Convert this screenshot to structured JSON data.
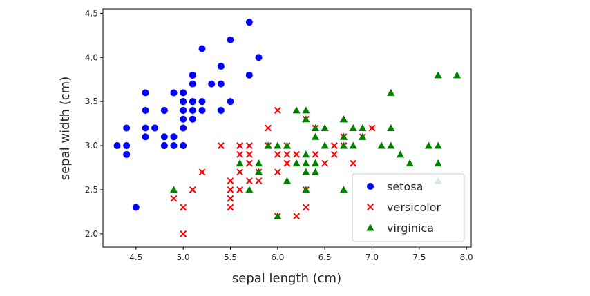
{
  "chart_data": {
    "type": "scatter",
    "xlabel": "sepal length (cm)",
    "ylabel": "sepal width (cm)",
    "xlim": [
      4.15,
      8.05
    ],
    "ylim": [
      1.85,
      4.55
    ],
    "xticks": [
      "4.5",
      "5.0",
      "5.5",
      "6.0",
      "6.5",
      "7.0",
      "7.5",
      "8.0"
    ],
    "yticks": [
      "2.0",
      "2.5",
      "3.0",
      "3.5",
      "4.0",
      "4.5"
    ],
    "grid": false,
    "legend": "lower-right",
    "series": [
      {
        "name": "setosa",
        "marker": "circle",
        "color": "#0000ff",
        "points": [
          [
            5.1,
            3.5
          ],
          [
            4.9,
            3.0
          ],
          [
            4.7,
            3.2
          ],
          [
            4.6,
            3.1
          ],
          [
            5.0,
            3.6
          ],
          [
            5.4,
            3.9
          ],
          [
            4.6,
            3.4
          ],
          [
            5.0,
            3.4
          ],
          [
            4.4,
            2.9
          ],
          [
            4.9,
            3.1
          ],
          [
            5.4,
            3.7
          ],
          [
            4.8,
            3.4
          ],
          [
            4.8,
            3.0
          ],
          [
            4.3,
            3.0
          ],
          [
            5.8,
            4.0
          ],
          [
            5.7,
            4.4
          ],
          [
            5.4,
            3.9
          ],
          [
            5.1,
            3.5
          ],
          [
            5.7,
            3.8
          ],
          [
            5.1,
            3.8
          ],
          [
            5.4,
            3.4
          ],
          [
            5.1,
            3.7
          ],
          [
            4.6,
            3.6
          ],
          [
            5.1,
            3.3
          ],
          [
            4.8,
            3.4
          ],
          [
            5.0,
            3.0
          ],
          [
            5.0,
            3.4
          ],
          [
            5.2,
            3.5
          ],
          [
            5.2,
            3.4
          ],
          [
            4.7,
            3.2
          ],
          [
            4.8,
            3.1
          ],
          [
            5.4,
            3.4
          ],
          [
            5.2,
            4.1
          ],
          [
            5.5,
            4.2
          ],
          [
            4.9,
            3.1
          ],
          [
            5.0,
            3.2
          ],
          [
            5.5,
            3.5
          ],
          [
            4.9,
            3.6
          ],
          [
            4.4,
            3.0
          ],
          [
            5.1,
            3.4
          ],
          [
            5.0,
            3.5
          ],
          [
            4.5,
            2.3
          ],
          [
            4.4,
            3.2
          ],
          [
            5.0,
            3.5
          ],
          [
            5.1,
            3.8
          ],
          [
            4.8,
            3.0
          ],
          [
            5.1,
            3.8
          ],
          [
            4.6,
            3.2
          ],
          [
            5.3,
            3.7
          ],
          [
            5.0,
            3.3
          ]
        ]
      },
      {
        "name": "versicolor",
        "marker": "x",
        "color": "#ff0000",
        "points": [
          [
            7.0,
            3.2
          ],
          [
            6.4,
            3.2
          ],
          [
            6.9,
            3.1
          ],
          [
            5.5,
            2.3
          ],
          [
            6.5,
            2.8
          ],
          [
            5.7,
            2.8
          ],
          [
            6.3,
            3.3
          ],
          [
            4.9,
            2.4
          ],
          [
            6.6,
            2.9
          ],
          [
            5.2,
            2.7
          ],
          [
            5.0,
            2.0
          ],
          [
            5.9,
            3.0
          ],
          [
            6.0,
            2.2
          ],
          [
            6.1,
            2.9
          ],
          [
            5.6,
            2.9
          ],
          [
            6.7,
            3.1
          ],
          [
            5.6,
            3.0
          ],
          [
            5.8,
            2.7
          ],
          [
            6.2,
            2.2
          ],
          [
            5.6,
            2.5
          ],
          [
            5.9,
            3.2
          ],
          [
            6.1,
            2.8
          ],
          [
            6.3,
            2.5
          ],
          [
            6.1,
            2.8
          ],
          [
            6.4,
            2.9
          ],
          [
            6.6,
            3.0
          ],
          [
            6.8,
            2.8
          ],
          [
            6.7,
            3.0
          ],
          [
            6.0,
            2.9
          ],
          [
            5.7,
            2.6
          ],
          [
            5.5,
            2.4
          ],
          [
            5.5,
            2.4
          ],
          [
            5.8,
            2.7
          ],
          [
            6.0,
            2.7
          ],
          [
            5.4,
            3.0
          ],
          [
            6.0,
            3.4
          ],
          [
            6.7,
            3.1
          ],
          [
            6.3,
            2.3
          ],
          [
            5.6,
            3.0
          ],
          [
            5.5,
            2.5
          ],
          [
            5.5,
            2.6
          ],
          [
            6.1,
            3.0
          ],
          [
            5.8,
            2.6
          ],
          [
            5.0,
            2.3
          ],
          [
            5.6,
            2.7
          ],
          [
            5.7,
            3.0
          ],
          [
            5.7,
            2.9
          ],
          [
            6.2,
            2.9
          ],
          [
            5.1,
            2.5
          ],
          [
            5.7,
            2.8
          ]
        ]
      },
      {
        "name": "virginica",
        "marker": "triangle",
        "color": "#008000",
        "points": [
          [
            6.3,
            3.3
          ],
          [
            5.8,
            2.7
          ],
          [
            7.1,
            3.0
          ],
          [
            6.3,
            2.9
          ],
          [
            6.5,
            3.0
          ],
          [
            7.6,
            3.0
          ],
          [
            4.9,
            2.5
          ],
          [
            7.3,
            2.9
          ],
          [
            6.7,
            2.5
          ],
          [
            7.2,
            3.6
          ],
          [
            6.5,
            3.2
          ],
          [
            6.4,
            2.7
          ],
          [
            6.8,
            3.0
          ],
          [
            5.7,
            2.5
          ],
          [
            5.8,
            2.8
          ],
          [
            6.4,
            3.2
          ],
          [
            6.5,
            3.0
          ],
          [
            7.7,
            3.8
          ],
          [
            7.7,
            2.6
          ],
          [
            6.0,
            2.2
          ],
          [
            6.9,
            3.2
          ],
          [
            5.6,
            2.8
          ],
          [
            7.7,
            2.8
          ],
          [
            6.3,
            2.7
          ],
          [
            6.7,
            3.3
          ],
          [
            7.2,
            3.2
          ],
          [
            6.2,
            2.8
          ],
          [
            6.1,
            3.0
          ],
          [
            6.4,
            2.8
          ],
          [
            7.2,
            3.0
          ],
          [
            7.4,
            2.8
          ],
          [
            7.9,
            3.8
          ],
          [
            6.4,
            2.8
          ],
          [
            6.3,
            2.8
          ],
          [
            6.1,
            2.6
          ],
          [
            7.7,
            3.0
          ],
          [
            6.3,
            3.4
          ],
          [
            6.4,
            3.1
          ],
          [
            6.0,
            3.0
          ],
          [
            6.9,
            3.1
          ],
          [
            6.7,
            3.1
          ],
          [
            6.9,
            3.1
          ],
          [
            5.8,
            2.7
          ],
          [
            6.8,
            3.2
          ],
          [
            6.7,
            3.3
          ],
          [
            6.7,
            3.0
          ],
          [
            6.3,
            2.5
          ],
          [
            6.5,
            3.0
          ],
          [
            6.2,
            3.4
          ],
          [
            5.9,
            3.0
          ]
        ]
      }
    ]
  }
}
